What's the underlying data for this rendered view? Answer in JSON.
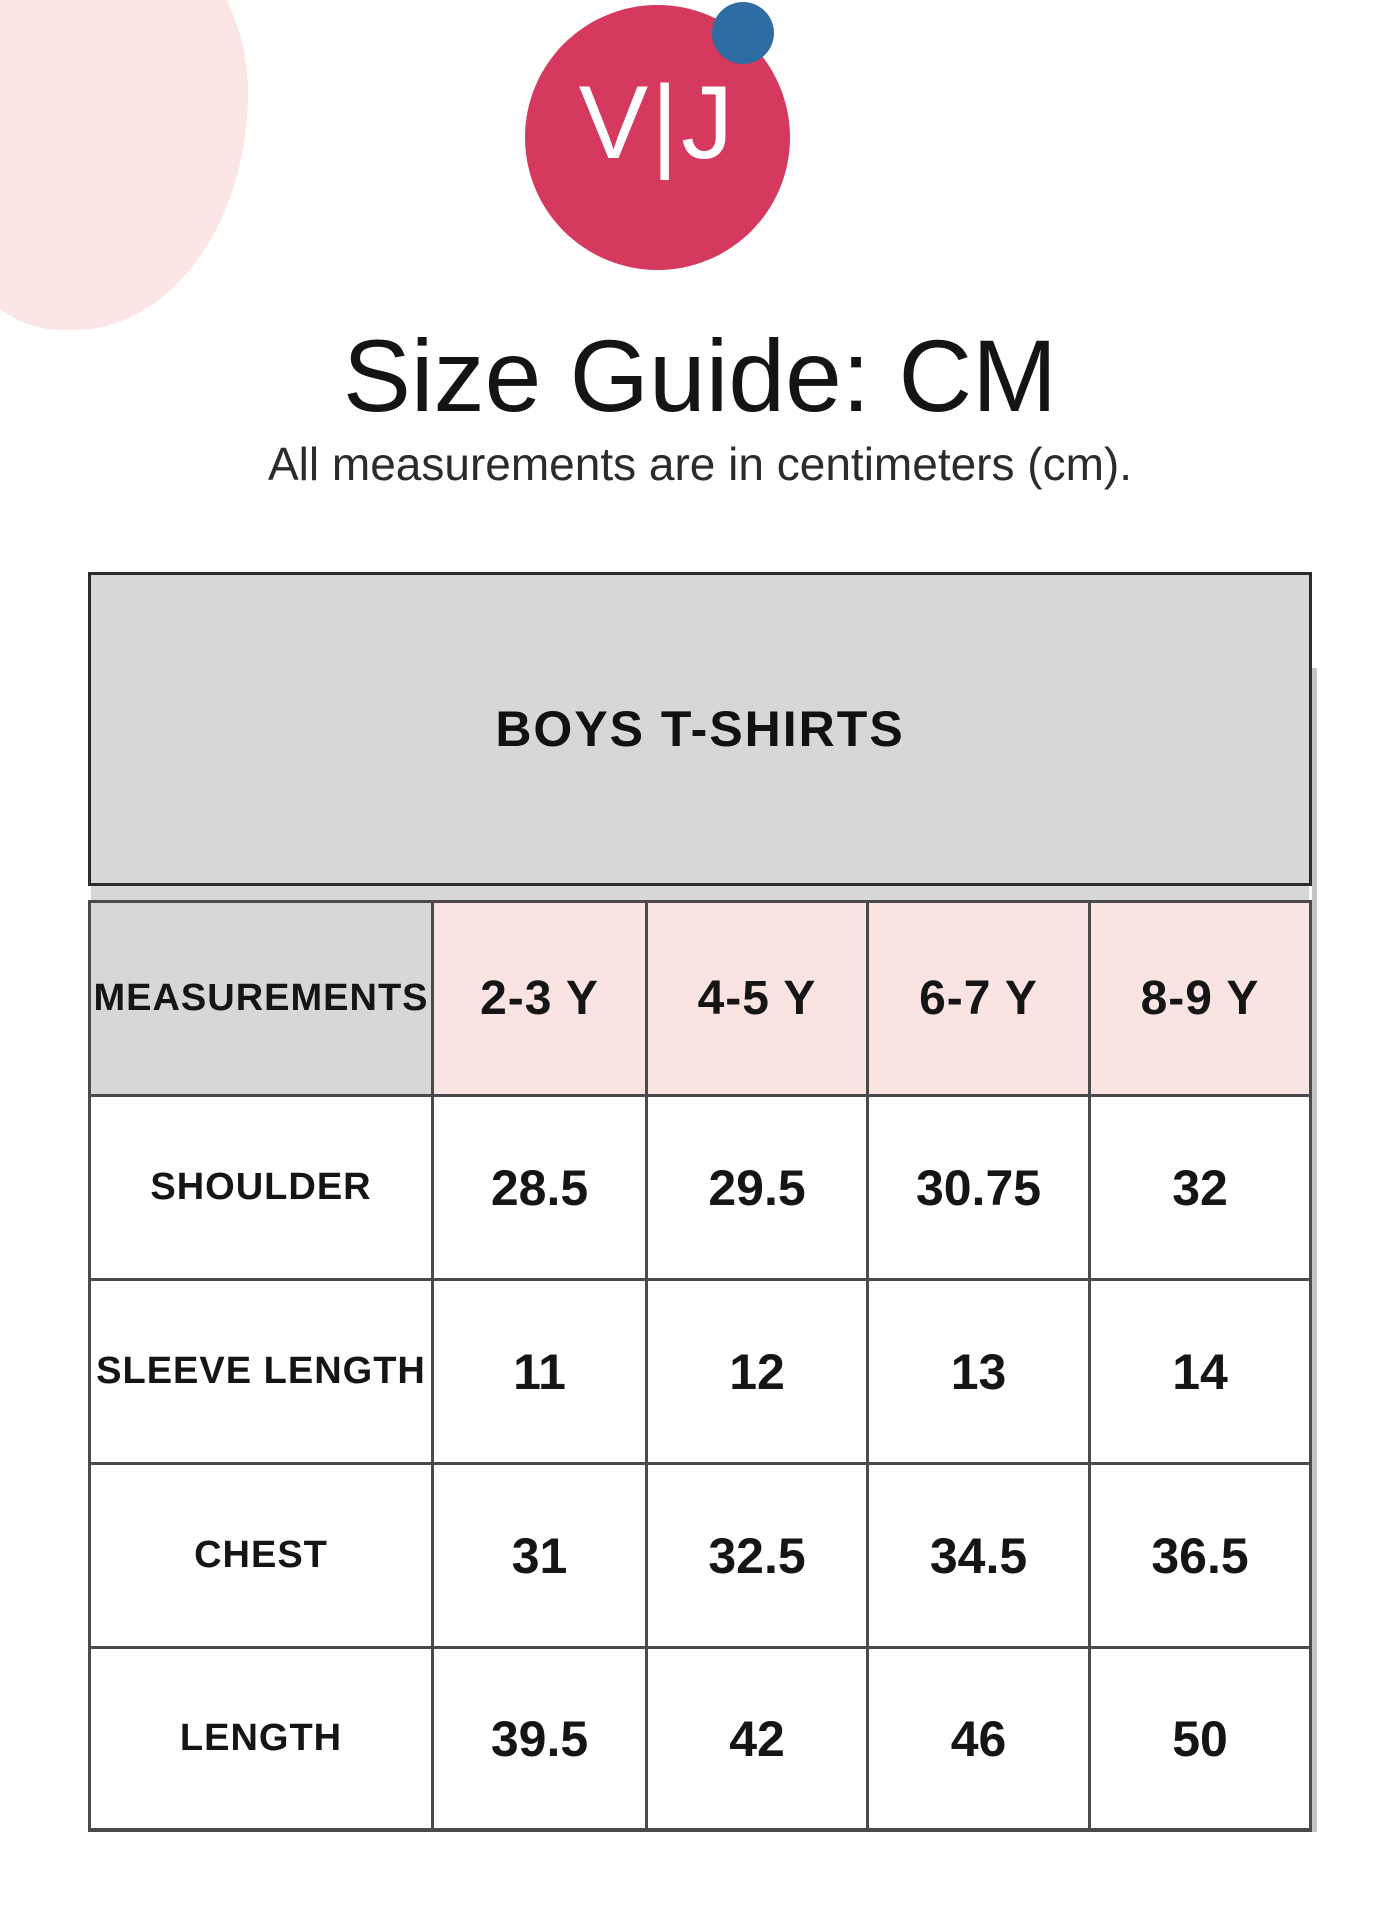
{
  "logo": {
    "monogram": "V|J",
    "circle_color": "#d5395e",
    "dot_color": "#2d6da4"
  },
  "header": {
    "title": "Size Guide: CM",
    "subtitle": "All measurements are in centimeters (cm)."
  },
  "table": {
    "title": "BOYS T-SHIRTS",
    "corner_label": "MEASUREMENTS",
    "size_columns": [
      "2-3 Y",
      "4-5 Y",
      "6-7 Y",
      "8-9 Y"
    ],
    "rows": [
      {
        "label": "SHOULDER",
        "values": [
          "28.5",
          "29.5",
          "30.75",
          "32"
        ]
      },
      {
        "label": "SLEEVE LENGTH",
        "values": [
          "11",
          "12",
          "13",
          "14"
        ]
      },
      {
        "label": "CHEST",
        "values": [
          "31",
          "32.5",
          "34.5",
          "36.5"
        ]
      },
      {
        "label": "LENGTH",
        "values": [
          "39.5",
          "42",
          "46",
          "50"
        ]
      }
    ]
  },
  "colors": {
    "page-bg": "#ffffff",
    "brand": "#d5395e",
    "accent-blue": "#2d6da4",
    "blob": "#fbe5e5",
    "cell-gray": "#d7d7d7",
    "cell-pink": "#f9e4e2"
  }
}
